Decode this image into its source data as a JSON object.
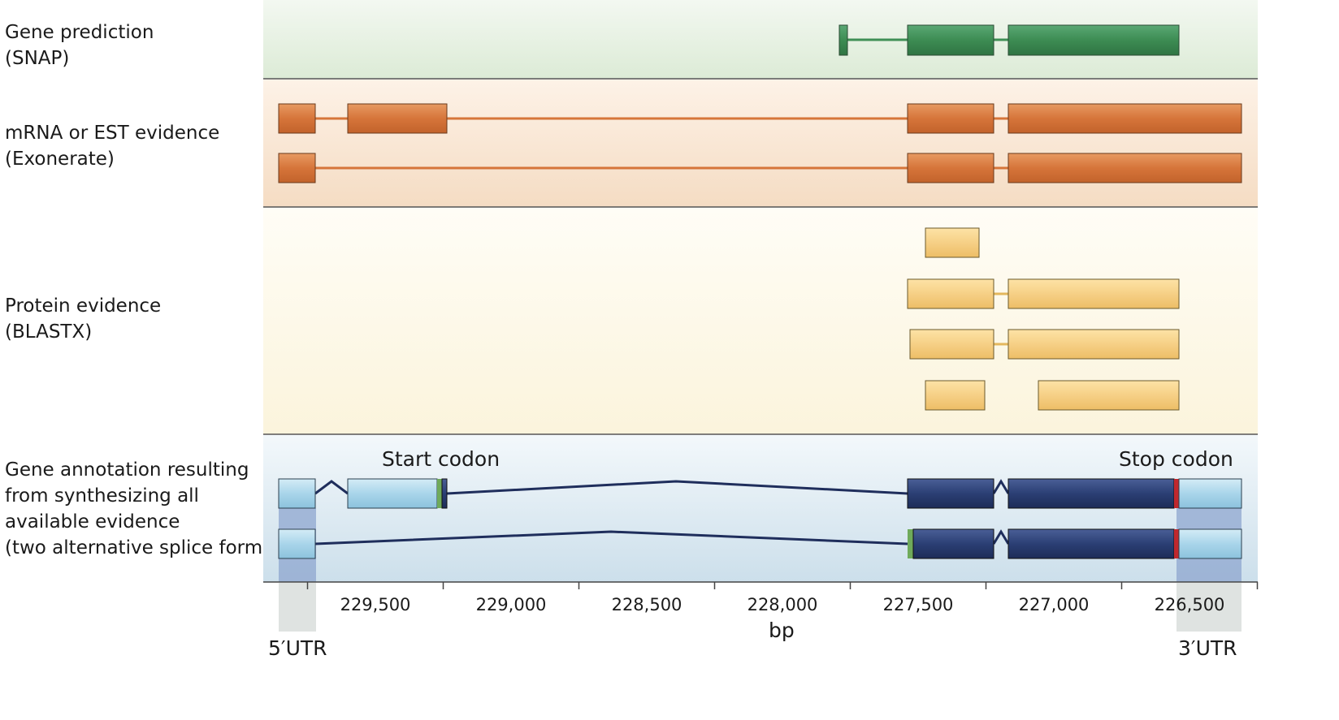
{
  "tracks": [
    {
      "id": "snap",
      "line1": "Gene prediction",
      "line2": "(SNAP)"
    },
    {
      "id": "exonerate",
      "line1": "mRNA or EST evidence",
      "line2": "(Exonerate)"
    },
    {
      "id": "blastx",
      "line1": "Protein evidence",
      "line2": "(BLASTX)"
    },
    {
      "id": "annotation",
      "line1": "Gene annotation resulting",
      "line2": "from synthesizing all",
      "line3": "available evidence",
      "line4": "(two alternative splice forms)"
    }
  ],
  "annotations": {
    "start_codon": "Start codon",
    "stop_codon": "Stop codon",
    "utr5": "5′UTR",
    "utr3": "3′UTR"
  },
  "axis": {
    "unit": "bp",
    "ticks": [
      "229,500",
      "229,000",
      "228,500",
      "228,000",
      "227,500",
      "227,000",
      "226,500"
    ]
  },
  "colors": {
    "snap_bg": "#e6f0e3",
    "snap_exon": "#3f8f55",
    "exonerate_bg": "#f8e4d0",
    "exonerate_exon": "#d9763a",
    "blastx_bg": "#fdf8ea",
    "blastx_exon": "#f5cf7c",
    "annotation_bg": "#dde9f2",
    "utr": "#a8d4ea",
    "cds": "#2b3f74",
    "start_codon": "#6faa5b",
    "stop_codon": "#c0282d"
  }
}
